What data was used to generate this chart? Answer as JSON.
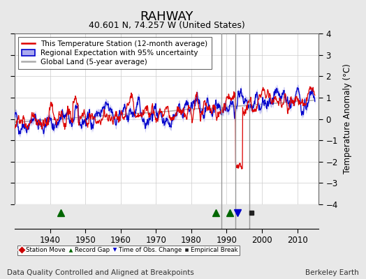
{
  "title": "RAHWAY",
  "subtitle": "40.601 N, 74.257 W (United States)",
  "ylabel": "Temperature Anomaly (°C)",
  "xlabel_footer": "Data Quality Controlled and Aligned at Breakpoints",
  "footer_right": "Berkeley Earth",
  "ylim": [
    -4,
    4
  ],
  "xlim": [
    1930,
    2016
  ],
  "yticks": [
    -4,
    -3,
    -2,
    -1,
    0,
    1,
    2,
    3,
    4
  ],
  "xticks": [
    1940,
    1950,
    1960,
    1970,
    1980,
    1990,
    2000,
    2010
  ],
  "legend_entries": [
    "This Temperature Station (12-month average)",
    "Regional Expectation with 95% uncertainty",
    "Global Land (5-year average)"
  ],
  "vertical_lines": [
    1988.5,
    1992.5,
    1996.5
  ],
  "vertical_line_color": "#999999",
  "record_gaps": [
    1943,
    1987,
    1991
  ],
  "obs_changes": [
    1993
  ],
  "empirical_breaks": [
    1997
  ],
  "background_color": "#e8e8e8",
  "plot_bg_color": "#ffffff",
  "red_line_color": "#dd0000",
  "blue_line_color": "#0000cc",
  "blue_fill_color": "#aaaaee",
  "gray_line_color": "#aaaaaa",
  "title_fontsize": 13,
  "subtitle_fontsize": 9,
  "legend_fontsize": 7.5,
  "tick_fontsize": 8.5,
  "footer_fontsize": 7.5
}
